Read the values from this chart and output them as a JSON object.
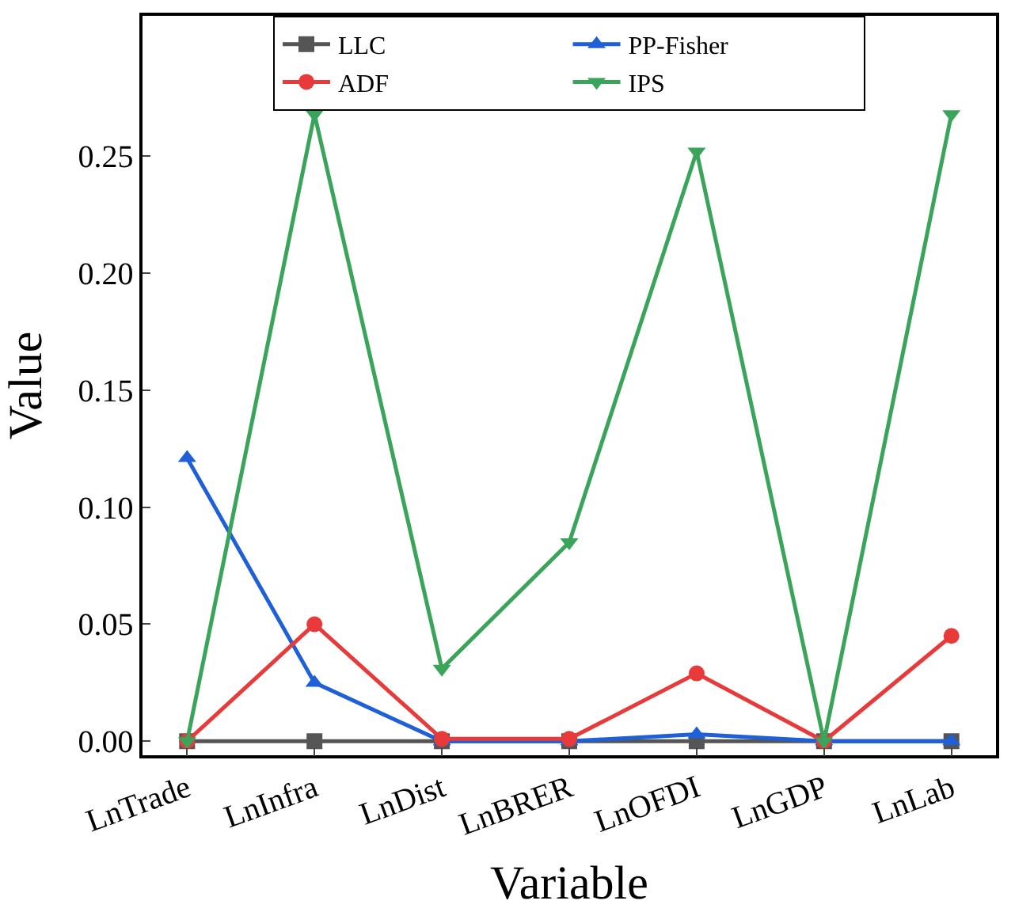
{
  "chart_data": {
    "type": "line",
    "xlabel": "Variable",
    "ylabel": "Value",
    "categories": [
      "LnTrade",
      "LnInfra",
      "LnDist",
      "LnBRER",
      "LnOFDI",
      "LnGDP",
      "LnLab"
    ],
    "series": [
      {
        "name": "LLC",
        "color": "#555555",
        "marker": "square",
        "values": [
          0,
          0,
          0,
          0,
          0,
          0,
          0
        ]
      },
      {
        "name": "PP-Fisher",
        "color": "#1f5fd8",
        "marker": "triangle",
        "values": [
          0.121,
          0.025,
          0,
          0,
          0.003,
          0,
          0
        ]
      },
      {
        "name": "ADF",
        "color": "#e83a3a",
        "marker": "circle",
        "values": [
          0,
          0.05,
          0.001,
          0.001,
          0.029,
          0,
          0.045
        ]
      },
      {
        "name": "IPS",
        "color": "#3aa55a",
        "marker": "triangle-down",
        "values": [
          0,
          0.268,
          0.031,
          0.085,
          0.252,
          0,
          0.268
        ]
      }
    ],
    "ylim": [
      -0.006,
      0.31
    ],
    "yticks": [
      {
        "value": 0,
        "label": "0.00"
      },
      {
        "value": 0.05,
        "label": "0.05"
      },
      {
        "value": 0.1,
        "label": "0.10"
      },
      {
        "value": 0.15,
        "label": "0.15"
      },
      {
        "value": 0.2,
        "label": "0.20"
      },
      {
        "value": 0.25,
        "label": "0.25"
      }
    ],
    "legend": "top",
    "line_style": "solid"
  }
}
